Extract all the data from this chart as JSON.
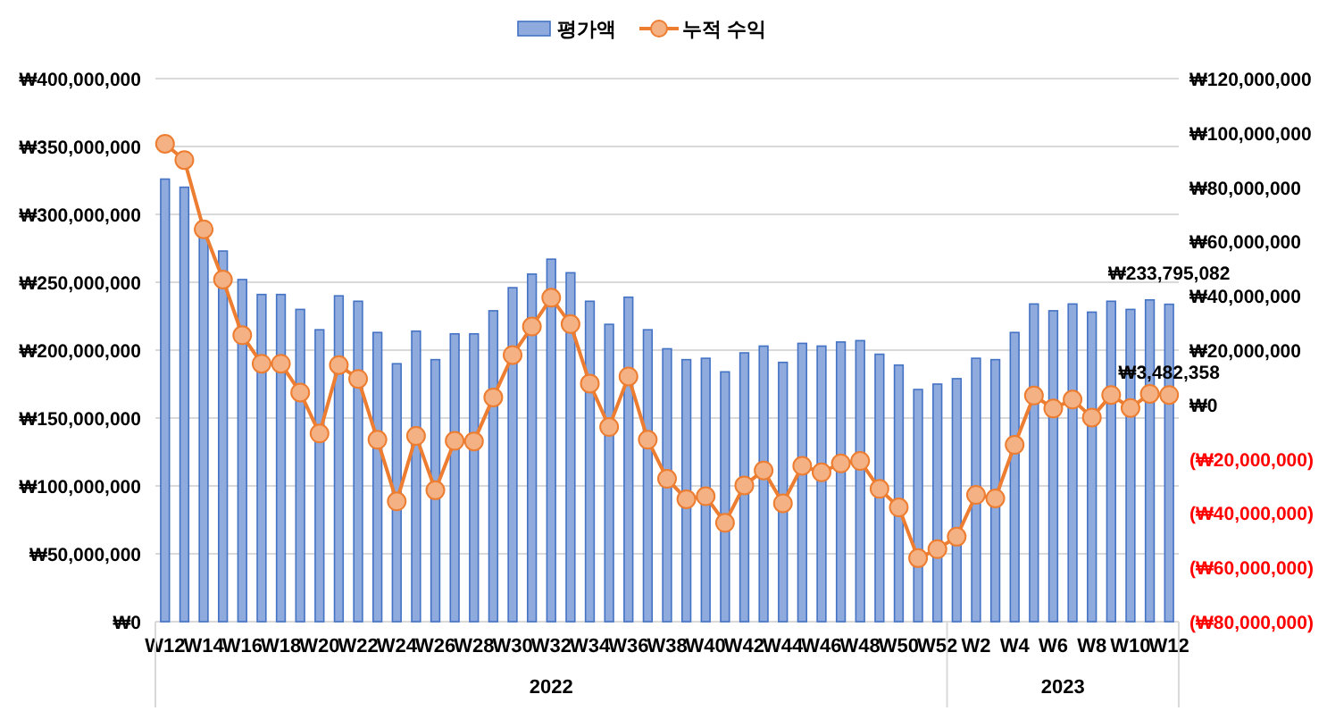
{
  "chart_data": {
    "type": "bar",
    "categories": [
      "W12",
      null,
      "W14",
      null,
      "W16",
      null,
      "W18",
      null,
      "W20",
      null,
      "W22",
      null,
      "W24",
      null,
      "W26",
      null,
      "W28",
      null,
      "W30",
      null,
      "W32",
      null,
      "W34",
      null,
      "W36",
      null,
      "W38",
      null,
      "W40",
      null,
      "W42",
      null,
      "W44",
      null,
      "W46",
      null,
      "W48",
      null,
      "W50",
      null,
      "W52",
      null,
      "W2",
      null,
      "W4",
      null,
      "W6",
      null,
      "W8",
      null,
      "W10",
      null,
      "W12"
    ],
    "series": [
      {
        "name": "평가액",
        "color": "#8faadc",
        "values": [
          326000000,
          320000000,
          287000000,
          273000000,
          252000000,
          241000000,
          241000000,
          230000000,
          215000000,
          240000000,
          236000000,
          213000000,
          190000000,
          214000000,
          193000000,
          212000000,
          212000000,
          229000000,
          246000000,
          256000000,
          267000000,
          257000000,
          236000000,
          219000000,
          239000000,
          215000000,
          201000000,
          193000000,
          194000000,
          184000000,
          198000000,
          203000000,
          191000000,
          205000000,
          203000000,
          206000000,
          207000000,
          197000000,
          189000000,
          171000000,
          175000000,
          179000000,
          194000000,
          193000000,
          213000000,
          234000000,
          229000000,
          234000000,
          228000000,
          236000000,
          230000000,
          237000000,
          233795082
        ],
        "value_labels": [
          null,
          null,
          null,
          null,
          null,
          null,
          null,
          null,
          null,
          null,
          null,
          null,
          null,
          null,
          null,
          null,
          null,
          null,
          null,
          null,
          null,
          null,
          null,
          null,
          null,
          null,
          null,
          null,
          null,
          null,
          null,
          null,
          null,
          null,
          null,
          null,
          null,
          null,
          null,
          null,
          null,
          null,
          null,
          null,
          null,
          null,
          null,
          null,
          null,
          null,
          null,
          null,
          "₩233,795,082"
        ]
      },
      {
        "name": "누적 수익",
        "type": "line",
        "axis": "y2",
        "color": "#ed7d31",
        "marker": "circle",
        "values": [
          96000000,
          90000000,
          64500000,
          46000000,
          25500000,
          15000000,
          15000000,
          4400000,
          -10700000,
          14500000,
          9400000,
          -13000000,
          -35700000,
          -11600000,
          -31600000,
          -13400000,
          -13600000,
          2600000,
          18200000,
          28700000,
          39300000,
          29600000,
          7700000,
          -8300000,
          10300000,
          -13000000,
          -27400000,
          -34900000,
          -33800000,
          -43600000,
          -29800000,
          -24300000,
          -36400000,
          -22600000,
          -25000000,
          -21700000,
          -20800000,
          -31100000,
          -37900000,
          -56600000,
          -53300000,
          -48700000,
          -33300000,
          -34600000,
          -14900000,
          3300000,
          -1500000,
          1800000,
          -4800000,
          3500000,
          -1300000,
          3900000,
          3482358
        ],
        "value_labels": [
          null,
          null,
          null,
          null,
          null,
          null,
          null,
          null,
          null,
          null,
          null,
          null,
          null,
          null,
          null,
          null,
          null,
          null,
          null,
          null,
          null,
          null,
          null,
          null,
          null,
          null,
          null,
          null,
          null,
          null,
          null,
          null,
          null,
          null,
          null,
          null,
          null,
          null,
          null,
          null,
          null,
          null,
          null,
          null,
          null,
          null,
          null,
          null,
          null,
          null,
          null,
          null,
          "₩3,482,358"
        ]
      }
    ],
    "ylim": [
      0,
      400000000
    ],
    "yticks": [
      {
        "value": 0,
        "label": "₩0"
      },
      {
        "value": 50000000,
        "label": "₩50,000,000"
      },
      {
        "value": 100000000,
        "label": "₩100,000,000"
      },
      {
        "value": 150000000,
        "label": "₩150,000,000"
      },
      {
        "value": 200000000,
        "label": "₩200,000,000"
      },
      {
        "value": 250000000,
        "label": "₩250,000,000"
      },
      {
        "value": 300000000,
        "label": "₩300,000,000"
      },
      {
        "value": 350000000,
        "label": "₩350,000,000"
      },
      {
        "value": 400000000,
        "label": "₩400,000,000"
      }
    ],
    "y2lim": [
      -80000000,
      120000000
    ],
    "y2ticks": [
      {
        "value": -80000000,
        "label": "(₩80,000,000)"
      },
      {
        "value": -60000000,
        "label": "(₩60,000,000)"
      },
      {
        "value": -40000000,
        "label": "(₩40,000,000)"
      },
      {
        "value": -20000000,
        "label": "(₩20,000,000)"
      },
      {
        "value": 0,
        "label": "₩0"
      },
      {
        "value": 20000000,
        "label": "₩20,000,000"
      },
      {
        "value": 40000000,
        "label": "₩40,000,000"
      },
      {
        "value": 60000000,
        "label": "₩60,000,000"
      },
      {
        "value": 80000000,
        "label": "₩80,000,000"
      },
      {
        "value": 100000000,
        "label": "₩100,000,000"
      },
      {
        "value": 120000000,
        "label": "₩120,000,000"
      }
    ],
    "annotations": [
      "2022",
      "2023"
    ],
    "grid": "y",
    "legend": "top"
  }
}
